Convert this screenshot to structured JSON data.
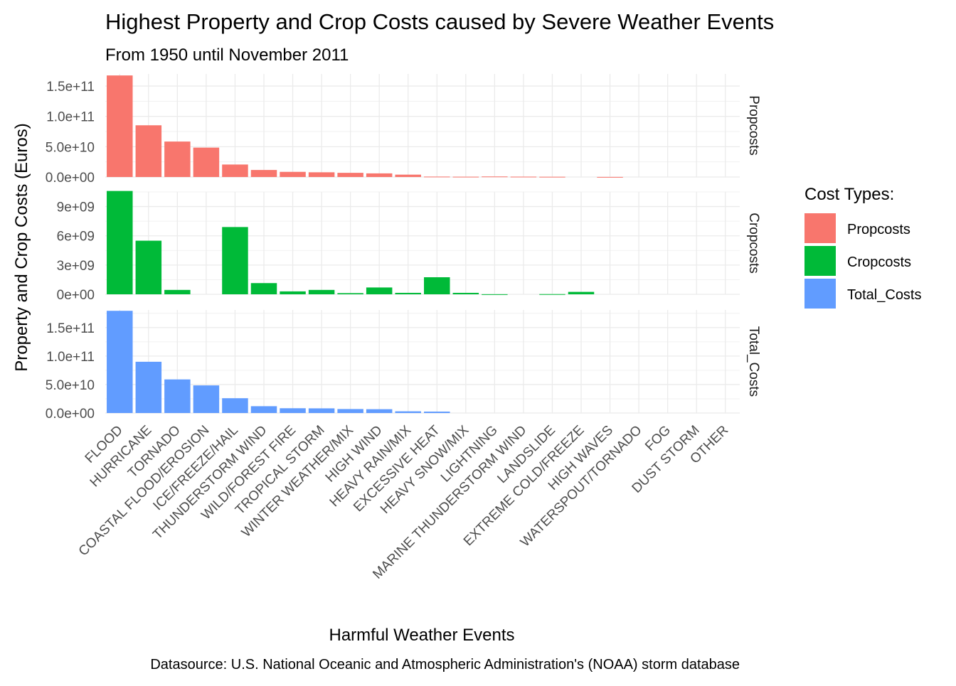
{
  "chart_data": {
    "type": "bar",
    "title": "Highest Property and Crop Costs caused by Severe Weather Events",
    "subtitle": "From 1950 until November 2011",
    "xlabel": "Harmful Weather Events",
    "ylabel": "Property and Crop Costs (Euros)",
    "caption": "Datasource: U.S. National Oceanic and Atmospheric Administration's (NOAA) storm database",
    "legend": {
      "title": "Cost Types:",
      "position": "right",
      "entries": [
        "Propcosts",
        "Cropcosts",
        "Total_Costs"
      ]
    },
    "categories": [
      "FLOOD",
      "HURRICANE",
      "TORNADO",
      "COASTAL FLOOD/EROSION",
      "ICE/FREEZE/HAIL",
      "THUNDERSTORM WIND",
      "WILD/FOREST FIRE",
      "TROPICAL STORM",
      "WINTER WEATHER/MIX",
      "HIGH WIND",
      "HEAVY RAIN/MIX",
      "EXCESSIVE HEAT",
      "HEAVY SNOW/MIX",
      "LIGHTNING",
      "MARINE THUNDERSTORM WIND",
      "LANDSLIDE",
      "EXTREME COLD/FREEZE",
      "HIGH WAVES",
      "WATERSPOUT/TORNADO",
      "FOG",
      "DUST STORM",
      "OTHER"
    ],
    "series": [
      {
        "name": "Propcosts",
        "color": "#F8766D",
        "ylim": [
          0,
          170000000000
        ],
        "ticks": [
          0,
          50000000000,
          100000000000,
          150000000000
        ],
        "tick_labels": [
          "0.0e+00",
          "5.0e+10",
          "1.0e+11",
          "1.5e+11"
        ],
        "values": [
          167500000000,
          85300000000,
          58500000000,
          48500000000,
          20600000000,
          11600000000,
          8500000000,
          7800000000,
          6900000000,
          6000000000,
          3900000000,
          700000000,
          500000000,
          900000000,
          600000000,
          400000000,
          0,
          100000000,
          0,
          0,
          0,
          0
        ]
      },
      {
        "name": "Cropcosts",
        "color": "#00BA38",
        "ylim": [
          0,
          10500000000
        ],
        "ticks": [
          0,
          3000000000,
          6000000000,
          9000000000
        ],
        "tick_labels": [
          "0e+00",
          "3e+09",
          "6e+09",
          "9e+09"
        ],
        "values": [
          10600000000,
          5500000000,
          450000000,
          0,
          6900000000,
          1150000000,
          300000000,
          450000000,
          120000000,
          700000000,
          150000000,
          1750000000,
          150000000,
          10000000,
          0,
          20000000,
          250000000,
          0,
          0,
          0,
          0,
          0
        ]
      },
      {
        "name": "Total_Costs",
        "color": "#619CFF",
        "ylim": [
          0,
          181000000000
        ],
        "ticks": [
          0,
          50000000000,
          100000000000,
          150000000000
        ],
        "tick_labels": [
          "0.0e+00",
          "5.0e+10",
          "1.0e+11",
          "1.5e+11"
        ],
        "values": [
          179500000000,
          90000000000,
          59000000000,
          48500000000,
          26000000000,
          12000000000,
          8400000000,
          8200000000,
          7000000000,
          6700000000,
          3000000000,
          2500000000,
          0,
          0,
          0,
          0,
          0,
          0,
          0,
          0,
          0,
          0
        ]
      }
    ]
  }
}
